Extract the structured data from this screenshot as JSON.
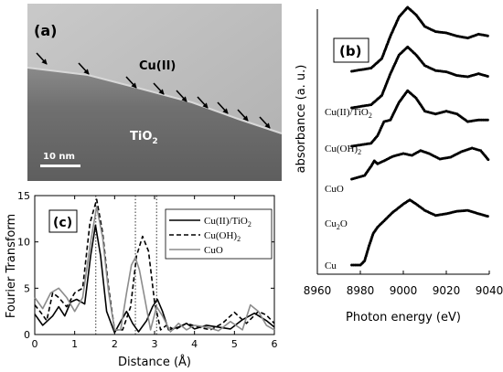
{
  "panel_a": {
    "label": "(a)",
    "film_label": "Cu(II)",
    "substrate_label_main": "TiO",
    "substrate_label_sub": "2",
    "scale_label": "10 nm"
  },
  "panel_b": {
    "label": "(b)",
    "traces": [
      {
        "main": "Cu(II)/TiO",
        "sub": "2"
      },
      {
        "main": "Cu(OH)",
        "sub": "2"
      },
      {
        "main": "CuO",
        "sub": ""
      },
      {
        "main": "Cu",
        "sub": "2",
        "tail": "O"
      },
      {
        "main": "Cu",
        "sub": ""
      }
    ]
  },
  "panel_c": {
    "label": "(c)"
  },
  "chart_data": [
    {
      "type": "line",
      "panel": "(c)",
      "xlabel": "Distance (Å)",
      "ylabel": "Fourier Transform",
      "xlim": [
        0,
        6
      ],
      "ylim": [
        0,
        15
      ],
      "x_ticks": [
        "0",
        "1",
        "2",
        "3",
        "4",
        "5",
        "6"
      ],
      "y_ticks": [
        "0",
        "5",
        "10",
        "15"
      ],
      "legend_position": "top-right",
      "reference_lines_x": [
        1.53,
        2.52,
        3.05
      ],
      "series": [
        {
          "name": "Cu(II)/TiO2",
          "legend_main": "Cu(II)/TiO",
          "legend_sub": "2",
          "style": "solid-black",
          "x": [
            0,
            0.2,
            0.45,
            0.6,
            0.75,
            0.9,
            1.05,
            1.25,
            1.4,
            1.52,
            1.65,
            1.8,
            2.0,
            2.15,
            2.3,
            2.45,
            2.6,
            2.8,
            2.95,
            3.07,
            3.2,
            3.35,
            3.6,
            3.8,
            4.0,
            4.3,
            4.6,
            4.9,
            5.2,
            5.5,
            5.8,
            6.0
          ],
          "y": [
            2.2,
            1.0,
            2.0,
            3.0,
            2.0,
            3.5,
            3.8,
            3.3,
            8.5,
            11.8,
            8.5,
            2.5,
            0.2,
            1.4,
            2.5,
            1.2,
            0.3,
            1.5,
            3.0,
            3.8,
            2.5,
            0.5,
            0.8,
            1.2,
            0.6,
            1.0,
            0.8,
            0.6,
            1.6,
            2.3,
            1.5,
            0.8
          ]
        },
        {
          "name": "Cu(OH)2",
          "legend_main": "Cu(OH)",
          "legend_sub": "2",
          "style": "dashed-black",
          "x": [
            0,
            0.15,
            0.3,
            0.45,
            0.6,
            0.8,
            1.0,
            1.2,
            1.38,
            1.55,
            1.7,
            1.85,
            2.0,
            2.2,
            2.4,
            2.55,
            2.7,
            2.85,
            3.0,
            3.15,
            3.3,
            3.5,
            3.8,
            4.1,
            4.4,
            4.7,
            5.0,
            5.3,
            5.6,
            5.8,
            6.0
          ],
          "y": [
            3.2,
            2.4,
            1.5,
            4.5,
            4.0,
            3.0,
            4.5,
            5.0,
            12.0,
            14.6,
            11.0,
            5.0,
            0.5,
            0.5,
            3.0,
            8.5,
            10.6,
            9.0,
            3.5,
            0.5,
            1.0,
            0.5,
            1.2,
            0.8,
            0.5,
            1.2,
            2.4,
            1.2,
            2.5,
            2.1,
            1.2
          ]
        },
        {
          "name": "CuO",
          "legend_main": "CuO",
          "legend_sub": "",
          "style": "solid-gray",
          "x": [
            0,
            0.2,
            0.4,
            0.6,
            0.8,
            1.0,
            1.2,
            1.4,
            1.55,
            1.7,
            1.85,
            2.0,
            2.15,
            2.3,
            2.42,
            2.52,
            2.62,
            2.75,
            2.9,
            3.05,
            3.2,
            3.4,
            3.6,
            3.8,
            4.0,
            4.3,
            4.6,
            4.9,
            5.2,
            5.4,
            5.6,
            5.8,
            6.0
          ],
          "y": [
            4.0,
            2.8,
            4.5,
            5.0,
            4.0,
            2.5,
            4.0,
            10.0,
            13.8,
            10.5,
            4.5,
            0.5,
            0.5,
            4.5,
            7.5,
            8.3,
            7.0,
            4.0,
            0.5,
            3.0,
            2.0,
            0.3,
            1.2,
            0.5,
            1.0,
            0.8,
            0.4,
            1.4,
            0.5,
            3.2,
            2.5,
            1.0,
            0.5
          ]
        }
      ]
    },
    {
      "type": "line",
      "panel": "(b)",
      "xlabel": "Photon energy (eV)",
      "ylabel": "absorbance (a. u.)",
      "xlim": [
        8960,
        9040
      ],
      "x_ticks": [
        "8960",
        "8980",
        "9000",
        "9020",
        "9040"
      ],
      "series": [
        {
          "name": "Cu(II)/TiO2",
          "offset": 4,
          "x": [
            8976,
            8985,
            8990,
            8994,
            8998,
            9002,
            9006,
            9010,
            9015,
            9020,
            9025,
            9030,
            9035,
            9040
          ],
          "y": [
            0,
            0.05,
            0.2,
            0.55,
            0.85,
            1.0,
            0.88,
            0.7,
            0.62,
            0.6,
            0.55,
            0.52,
            0.58,
            0.55
          ]
        },
        {
          "name": "Cu(OH)2",
          "offset": 3,
          "x": [
            8976,
            8985,
            8990,
            8994,
            8998,
            9002,
            9006,
            9010,
            9015,
            9020,
            9025,
            9030,
            9035,
            9040
          ],
          "y": [
            0,
            0.05,
            0.2,
            0.55,
            0.85,
            0.98,
            0.85,
            0.68,
            0.6,
            0.58,
            0.52,
            0.5,
            0.55,
            0.5
          ]
        },
        {
          "name": "CuO",
          "offset": 2,
          "x": [
            8976,
            8985,
            8988,
            8991,
            8994,
            8998,
            9002,
            9006,
            9010,
            9015,
            9020,
            9025,
            9030,
            9035,
            9040
          ],
          "y": [
            0,
            0.05,
            0.18,
            0.42,
            0.45,
            0.75,
            0.95,
            0.82,
            0.6,
            0.55,
            0.6,
            0.55,
            0.42,
            0.45,
            0.45
          ]
        },
        {
          "name": "Cu2O",
          "offset": 1,
          "x": [
            8976,
            8982,
            8985,
            8986.5,
            8988,
            8991,
            8995,
            9000,
            9004,
            9008,
            9012,
            9017,
            9022,
            9027,
            9032,
            9036,
            9040
          ],
          "y": [
            0,
            0.1,
            0.35,
            0.5,
            0.42,
            0.5,
            0.62,
            0.7,
            0.65,
            0.78,
            0.7,
            0.55,
            0.6,
            0.75,
            0.85,
            0.78,
            0.5
          ]
        },
        {
          "name": "Cu",
          "offset": 0,
          "x": [
            8976,
            8980,
            8982,
            8984,
            8986,
            8988,
            8991,
            8995,
            9000,
            9003,
            9006,
            9010,
            9015,
            9020,
            9025,
            9030,
            9035,
            9040
          ],
          "y": [
            0,
            0.0,
            0.1,
            0.45,
            0.75,
            0.9,
            1.05,
            1.25,
            1.45,
            1.55,
            1.45,
            1.3,
            1.18,
            1.22,
            1.28,
            1.3,
            1.22,
            1.15
          ]
        }
      ]
    }
  ]
}
